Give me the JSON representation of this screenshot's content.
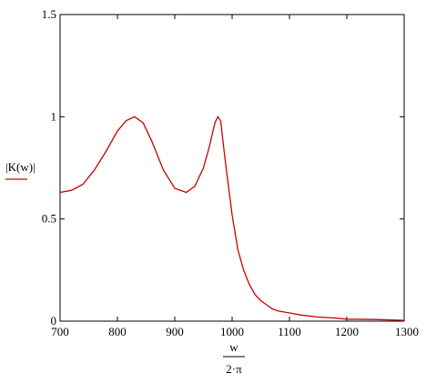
{
  "chart_data": {
    "type": "line",
    "ylabel": "|K(w)|",
    "xlabel": {
      "numerator": "w",
      "denominator": "2·π"
    },
    "xlim": [
      700,
      1300
    ],
    "ylim": [
      0,
      1.5
    ],
    "x_ticks": [
      700,
      800,
      900,
      1000,
      1100,
      1200,
      1300
    ],
    "x_tick_labels": [
      "700",
      "800",
      "900",
      "1000",
      "1100",
      "1200",
      "1300"
    ],
    "y_ticks": [
      0,
      0.5,
      1,
      1.5
    ],
    "y_tick_labels": [
      "0",
      "0.5",
      "1",
      "1.5"
    ],
    "grid": false,
    "series": [
      {
        "color": "#cc0000",
        "x": [
          700,
          720,
          740,
          760,
          780,
          800,
          815,
          830,
          845,
          860,
          880,
          900,
          920,
          935,
          950,
          960,
          970,
          975,
          980,
          985,
          990,
          1000,
          1010,
          1020,
          1030,
          1040,
          1050,
          1060,
          1070,
          1080,
          1100,
          1120,
          1150,
          1180,
          1200,
          1250,
          1300
        ],
        "y": [
          0.63,
          0.64,
          0.67,
          0.74,
          0.83,
          0.93,
          0.98,
          1.0,
          0.97,
          0.88,
          0.74,
          0.65,
          0.63,
          0.66,
          0.75,
          0.85,
          0.97,
          1.0,
          0.98,
          0.86,
          0.74,
          0.52,
          0.35,
          0.25,
          0.18,
          0.13,
          0.1,
          0.08,
          0.06,
          0.05,
          0.04,
          0.03,
          0.02,
          0.015,
          0.01,
          0.008,
          0.004
        ]
      }
    ]
  }
}
